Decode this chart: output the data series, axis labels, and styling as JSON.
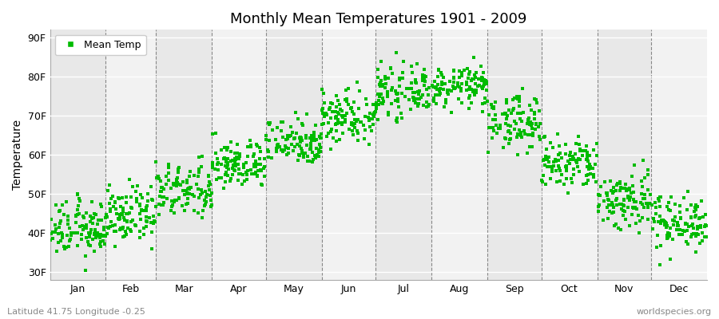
{
  "title": "Monthly Mean Temperatures 1901 - 2009",
  "ylabel": "Temperature",
  "month_labels": [
    "Jan",
    "Feb",
    "Mar",
    "Apr",
    "May",
    "Jun",
    "Jul",
    "Aug",
    "Sep",
    "Oct",
    "Nov",
    "Dec"
  ],
  "ytick_labels": [
    "30F",
    "40F",
    "50F",
    "60F",
    "70F",
    "80F",
    "90F"
  ],
  "ytick_values": [
    30,
    40,
    50,
    60,
    70,
    80,
    90
  ],
  "ylim": [
    28,
    92
  ],
  "legend_label": "Mean Temp",
  "dot_color": "#00bb00",
  "bg_color_dark": "#e8e8e8",
  "bg_color_light": "#f2f2f2",
  "subtitle_left": "Latitude 41.75 Longitude -0.25",
  "subtitle_right": "worldspecies.org",
  "n_years": 109,
  "monthly_means": [
    41.0,
    44.5,
    50.5,
    57.5,
    63.5,
    70.0,
    76.0,
    77.5,
    68.5,
    57.5,
    48.5,
    43.0
  ],
  "monthly_stds": [
    3.5,
    3.5,
    3.5,
    3.0,
    3.0,
    3.5,
    3.0,
    2.5,
    3.5,
    3.5,
    4.0,
    3.5
  ]
}
